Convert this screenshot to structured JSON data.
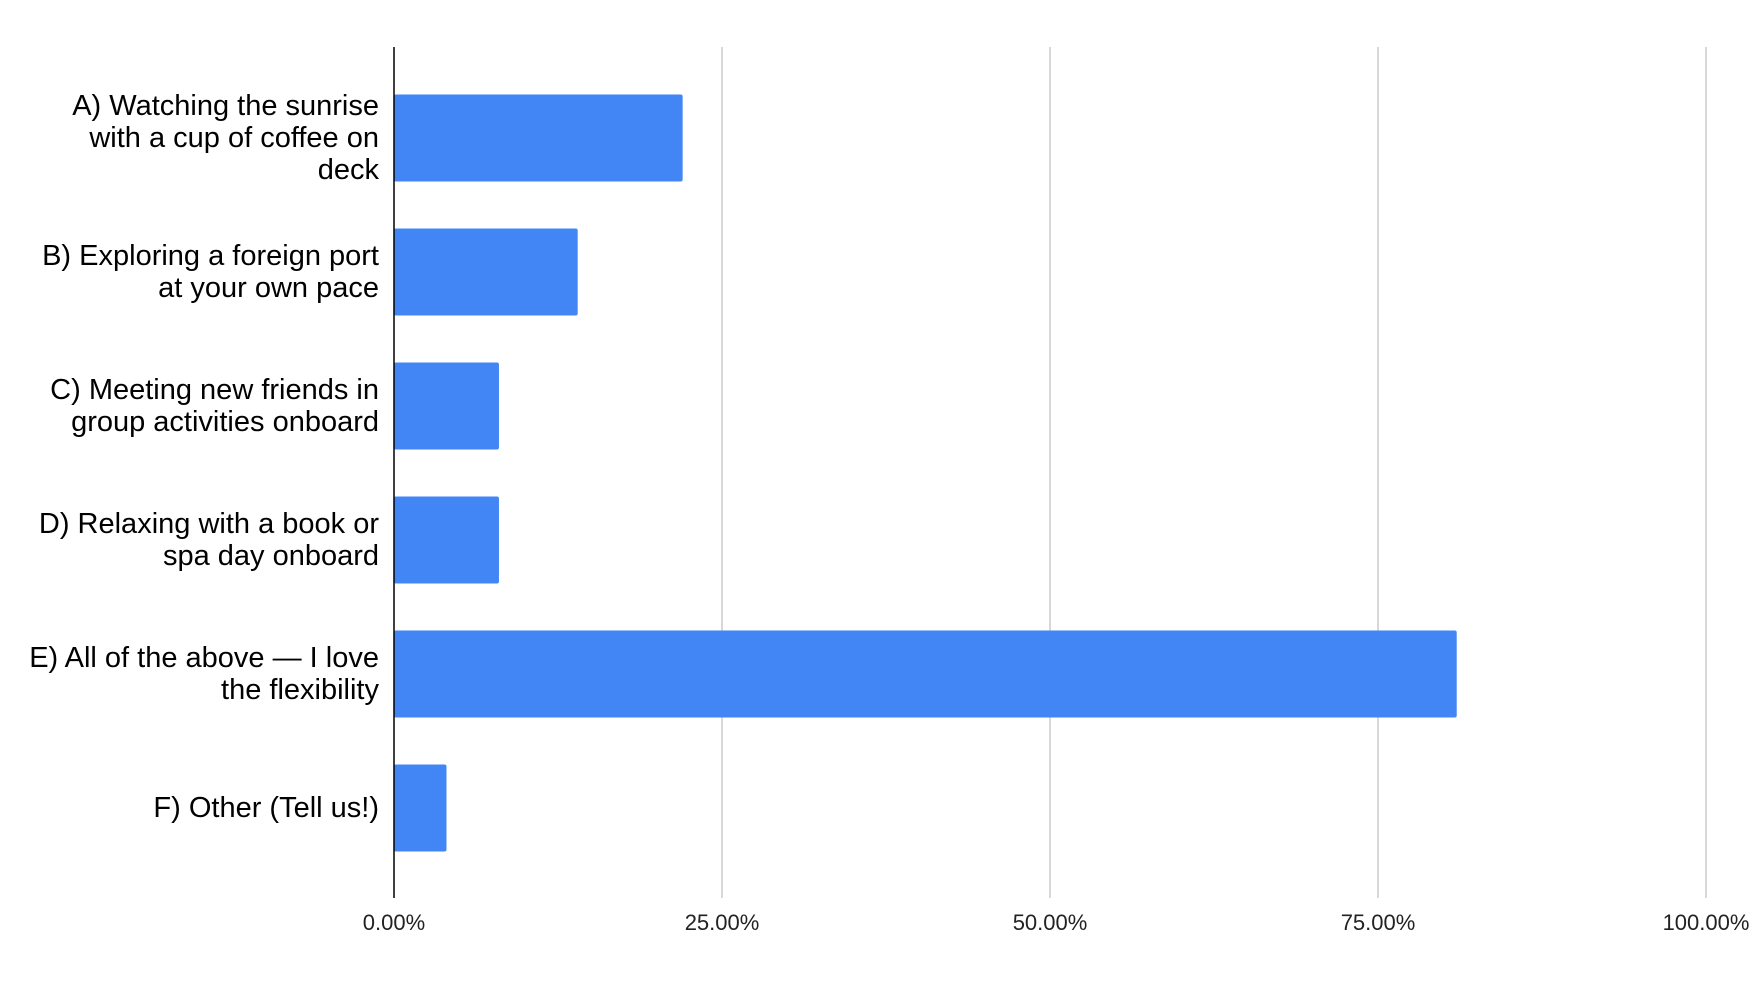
{
  "chart_data": {
    "type": "bar",
    "orientation": "horizontal",
    "categories": [
      "A) Watching the sunrise with a cup of coffee on deck",
      "B) Exploring a foreign port at your own pace",
      "C) Meeting new friends in group activities onboard",
      "D) Relaxing with a book or spa day onboard",
      "E) All of the above — I love the flexibility",
      "F) Other (Tell us!)"
    ],
    "values": [
      22,
      14,
      8,
      8,
      81,
      4
    ],
    "color": "#4285f4",
    "xlim": [
      0,
      100
    ],
    "xticks": [
      {
        "value": 0,
        "label": "0.00%"
      },
      {
        "value": 25,
        "label": "25.00%"
      },
      {
        "value": 50,
        "label": "50.00%"
      },
      {
        "value": 75,
        "label": "75.00%"
      },
      {
        "value": 100,
        "label": "100.00%"
      }
    ],
    "grid": true
  }
}
